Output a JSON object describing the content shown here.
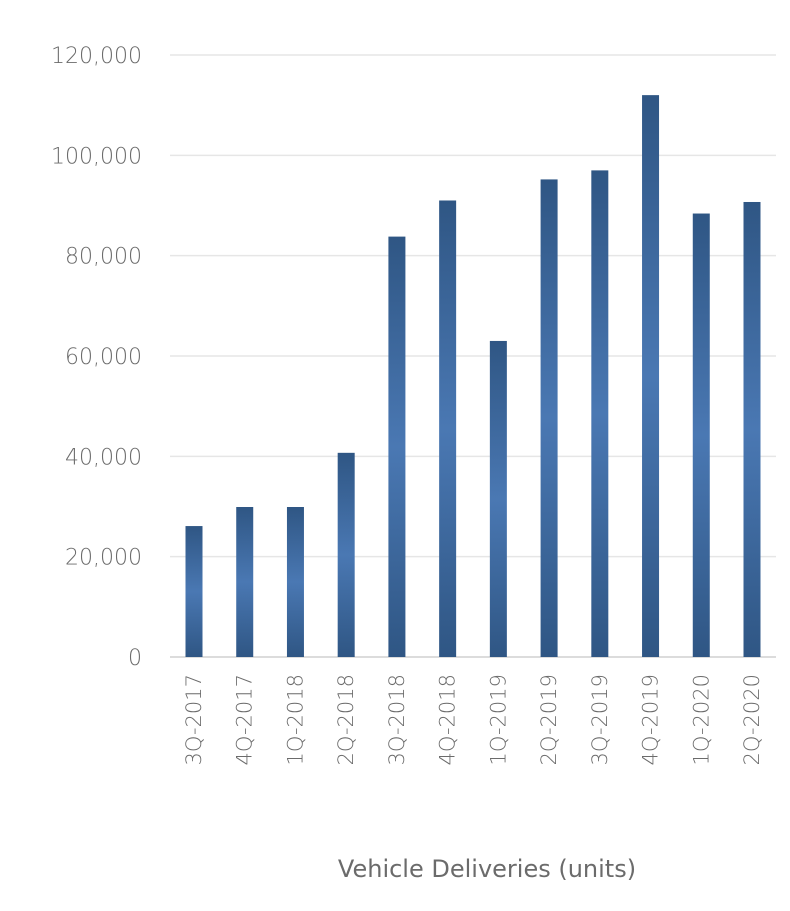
{
  "chart_data": {
    "type": "bar",
    "categories": [
      "3Q-2017",
      "4Q-2017",
      "1Q-2018",
      "2Q-2018",
      "3Q-2018",
      "4Q-2018",
      "1Q-2019",
      "2Q-2019",
      "3Q-2019",
      "4Q-2019",
      "1Q-2020",
      "2Q-2020"
    ],
    "series": [
      {
        "values": [
          26100,
          29900,
          29900,
          40700,
          83800,
          91000,
          63000,
          95200,
          97000,
          112000,
          88400,
          90700
        ]
      }
    ],
    "title": "",
    "xlabel": "Vehicle Deliveries (units)",
    "ylabel": "",
    "ylim": [
      0,
      120000
    ],
    "yticks": [
      "0",
      "20,000",
      "40,000",
      "60,000",
      "80,000",
      "100,000",
      "120,000"
    ],
    "ytick_values": [
      0,
      20000,
      40000,
      60000,
      80000,
      100000,
      120000
    ],
    "grid": true,
    "legend": "none",
    "colors": {
      "bar_edge": "#2f5684",
      "bar_center": "#4a78b3",
      "grid": "#e6e6e6",
      "text": "#6b6b6b"
    }
  }
}
